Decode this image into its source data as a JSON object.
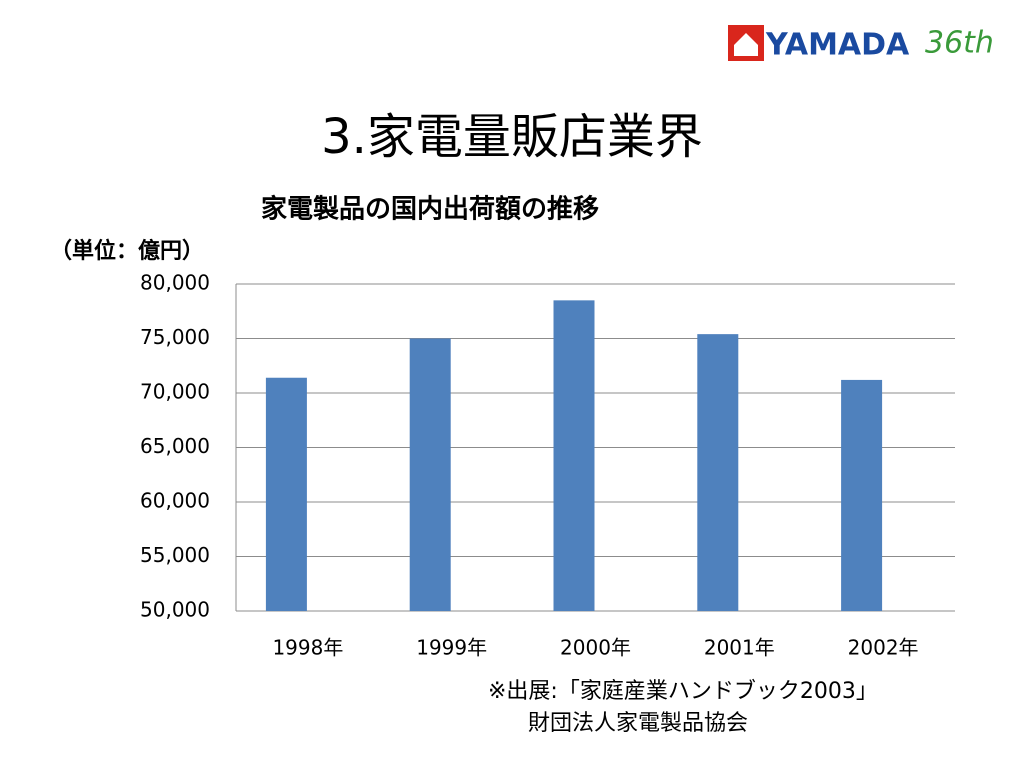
{
  "logo": {
    "name": "YAMADA",
    "anniversary": "36th"
  },
  "slide_title": "3.家電量販店業界",
  "chart_data": {
    "type": "bar",
    "title": "家電製品の国内出荷額の推移",
    "y_label": "（単位：億円）",
    "categories": [
      "1998年",
      "1999年",
      "2000年",
      "2001年",
      "2002年"
    ],
    "values": [
      71400,
      75000,
      78500,
      75400,
      71200
    ],
    "color": "#4f81bd",
    "ylim": [
      50000,
      80000
    ],
    "yticks": [
      {
        "value": 50000,
        "label": "50,000"
      },
      {
        "value": 55000,
        "label": "55,000"
      },
      {
        "value": 60000,
        "label": "60,000"
      },
      {
        "value": 65000,
        "label": "65,000"
      },
      {
        "value": 70000,
        "label": "70,000"
      },
      {
        "value": 75000,
        "label": "75,000"
      },
      {
        "value": 80000,
        "label": "80,000"
      }
    ],
    "grid": true,
    "source": [
      "※出展:「家庭産業ハンドブック2003」",
      "財団法人家電製品協会"
    ]
  }
}
